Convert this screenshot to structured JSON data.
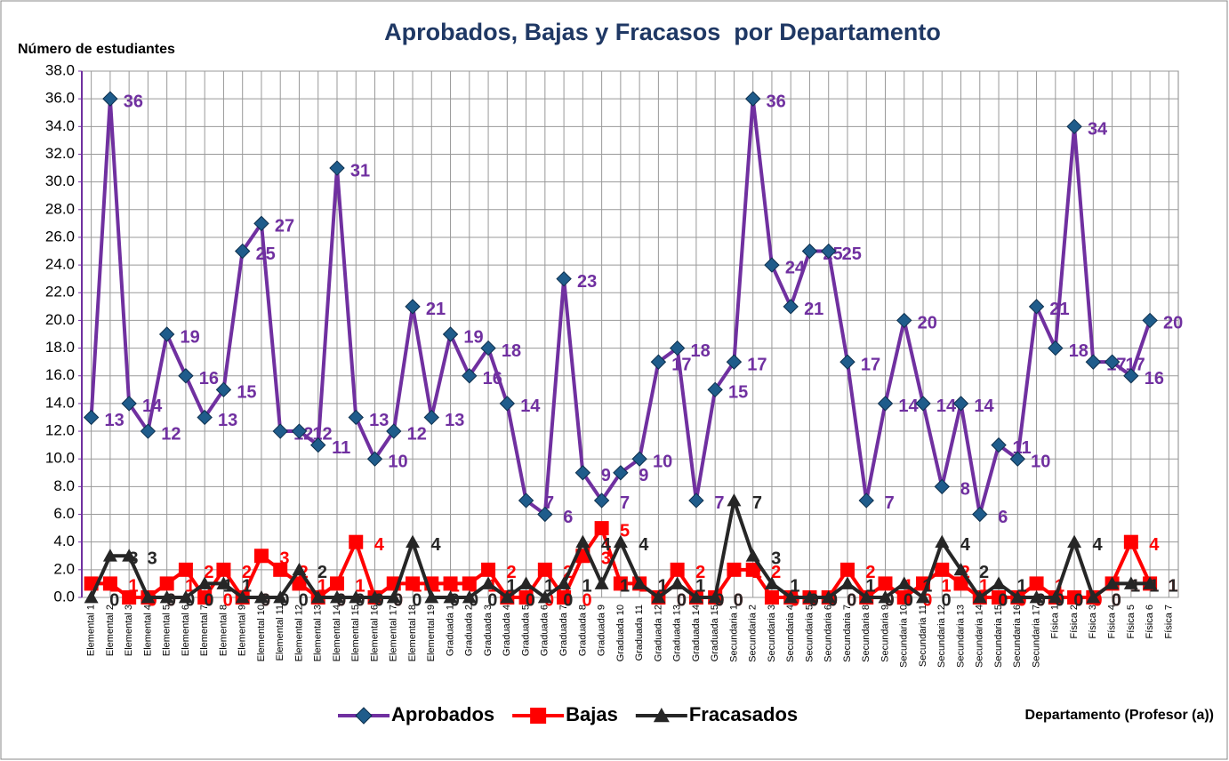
{
  "chart_data": {
    "type": "line",
    "title": "Aprobados, Bajas y Fracasos  por Departamento",
    "y_label": "Número de estudiantes",
    "x_label": "Departamento (Profesor (a))",
    "categories": [
      "Elemental 1",
      "Elemental 2",
      "Elemental 3",
      "Elemental 4",
      "Elemental 5",
      "Elemental 6",
      "Elemental 7",
      "Elemental 8",
      "Elemental 9",
      "Elemental 10",
      "Elemental 11",
      "Elemental 12",
      "Elemental 13",
      "Elemental 14",
      "Elemental 15",
      "Elemental 16",
      "Elemental 17",
      "Elemental 18",
      "Elemental 19",
      "Graduada 1",
      "Graduada 2",
      "Graduada 3",
      "Graduada 4",
      "Graduada 5",
      "Graduada 6",
      "Graduada 7",
      "Graduada 8",
      "Graduada 9",
      "Graduada 10",
      "Graduada 11",
      "Graduada 12",
      "Graduada 13",
      "Graduada 14",
      "Graduada 15",
      "Secundaria 1",
      "Secundaria 2",
      "Secundaria 3",
      "Secundaria 4",
      "Secundaria 5",
      "Secundaria 6",
      "Secundaria 7",
      "Secundaria 8",
      "Secundaria 9",
      "Secundaria 10",
      "Secundaria 11",
      "Secundaria 12",
      "Secundaria 13",
      "Secundaria 14",
      "Secundaria 15",
      "Secundaria 16",
      "Secundaria 17",
      "Física 1",
      "Física 2",
      "Física 3",
      "Física 4",
      "Física 5",
      "Física 6",
      "Física 7"
    ],
    "series": [
      {
        "name": "Aprobados",
        "color": "#7030a0",
        "marker": "diamond",
        "values": [
          13,
          36,
          14,
          12,
          19,
          16,
          13,
          15,
          25,
          27,
          12,
          12,
          11,
          31,
          13,
          10,
          12,
          21,
          13,
          19,
          16,
          18,
          14,
          7,
          6,
          23,
          9,
          7,
          9,
          10,
          17,
          18,
          7,
          15,
          17,
          36,
          24,
          21,
          25,
          25,
          17,
          7,
          14,
          20,
          14,
          8,
          14,
          6,
          11,
          10,
          21,
          18,
          34,
          17,
          17,
          16,
          20,
          null
        ]
      },
      {
        "name": "Bajas",
        "color": "#ff0000",
        "marker": "square",
        "values": [
          1,
          1,
          0,
          0,
          1,
          2,
          0,
          2,
          0,
          3,
          2,
          1,
          0,
          1,
          4,
          0,
          1,
          1,
          1,
          1,
          1,
          2,
          0,
          0,
          2,
          0,
          3,
          5,
          1,
          1,
          0,
          2,
          0,
          0,
          2,
          2,
          0,
          0,
          0,
          0,
          2,
          0,
          1,
          0,
          1,
          2,
          1,
          0,
          0,
          0,
          1,
          0,
          0,
          0,
          1,
          4,
          1,
          null
        ]
      },
      {
        "name": "Fracasados",
        "color": "#262626",
        "marker": "triangle",
        "values": [
          0,
          3,
          3,
          0,
          0,
          0,
          1,
          1,
          0,
          0,
          0,
          2,
          0,
          0,
          0,
          0,
          0,
          4,
          0,
          0,
          0,
          1,
          0,
          1,
          0,
          1,
          4,
          1,
          4,
          1,
          0,
          1,
          0,
          0,
          7,
          3,
          1,
          0,
          0,
          0,
          1,
          0,
          0,
          1,
          0,
          4,
          2,
          0,
          1,
          0,
          0,
          0,
          4,
          0,
          1,
          1,
          1,
          null
        ]
      }
    ],
    "ylim": [
      0,
      38
    ],
    "yticks": [
      {
        "value": 0,
        "label": "0.0"
      },
      {
        "value": 2,
        "label": "2.0"
      },
      {
        "value": 4,
        "label": "4.0"
      },
      {
        "value": 6,
        "label": "6.0"
      },
      {
        "value": 8,
        "label": "8.0"
      },
      {
        "value": 10,
        "label": "10.0"
      },
      {
        "value": 12,
        "label": "12.0"
      },
      {
        "value": 14,
        "label": "14.0"
      },
      {
        "value": 16,
        "label": "16.0"
      },
      {
        "value": 18,
        "label": "18.0"
      },
      {
        "value": 20,
        "label": "20.0"
      },
      {
        "value": 22,
        "label": "22.0"
      },
      {
        "value": 24,
        "label": "24.0"
      },
      {
        "value": 26,
        "label": "26.0"
      },
      {
        "value": 28,
        "label": "28.0"
      },
      {
        "value": 30,
        "label": "30.0"
      },
      {
        "value": 32,
        "label": "32.0"
      },
      {
        "value": 34,
        "label": "34.0"
      },
      {
        "value": 36,
        "label": "36.0"
      },
      {
        "value": 38,
        "label": "38.0"
      }
    ],
    "grid": true,
    "legend": "bottom"
  }
}
